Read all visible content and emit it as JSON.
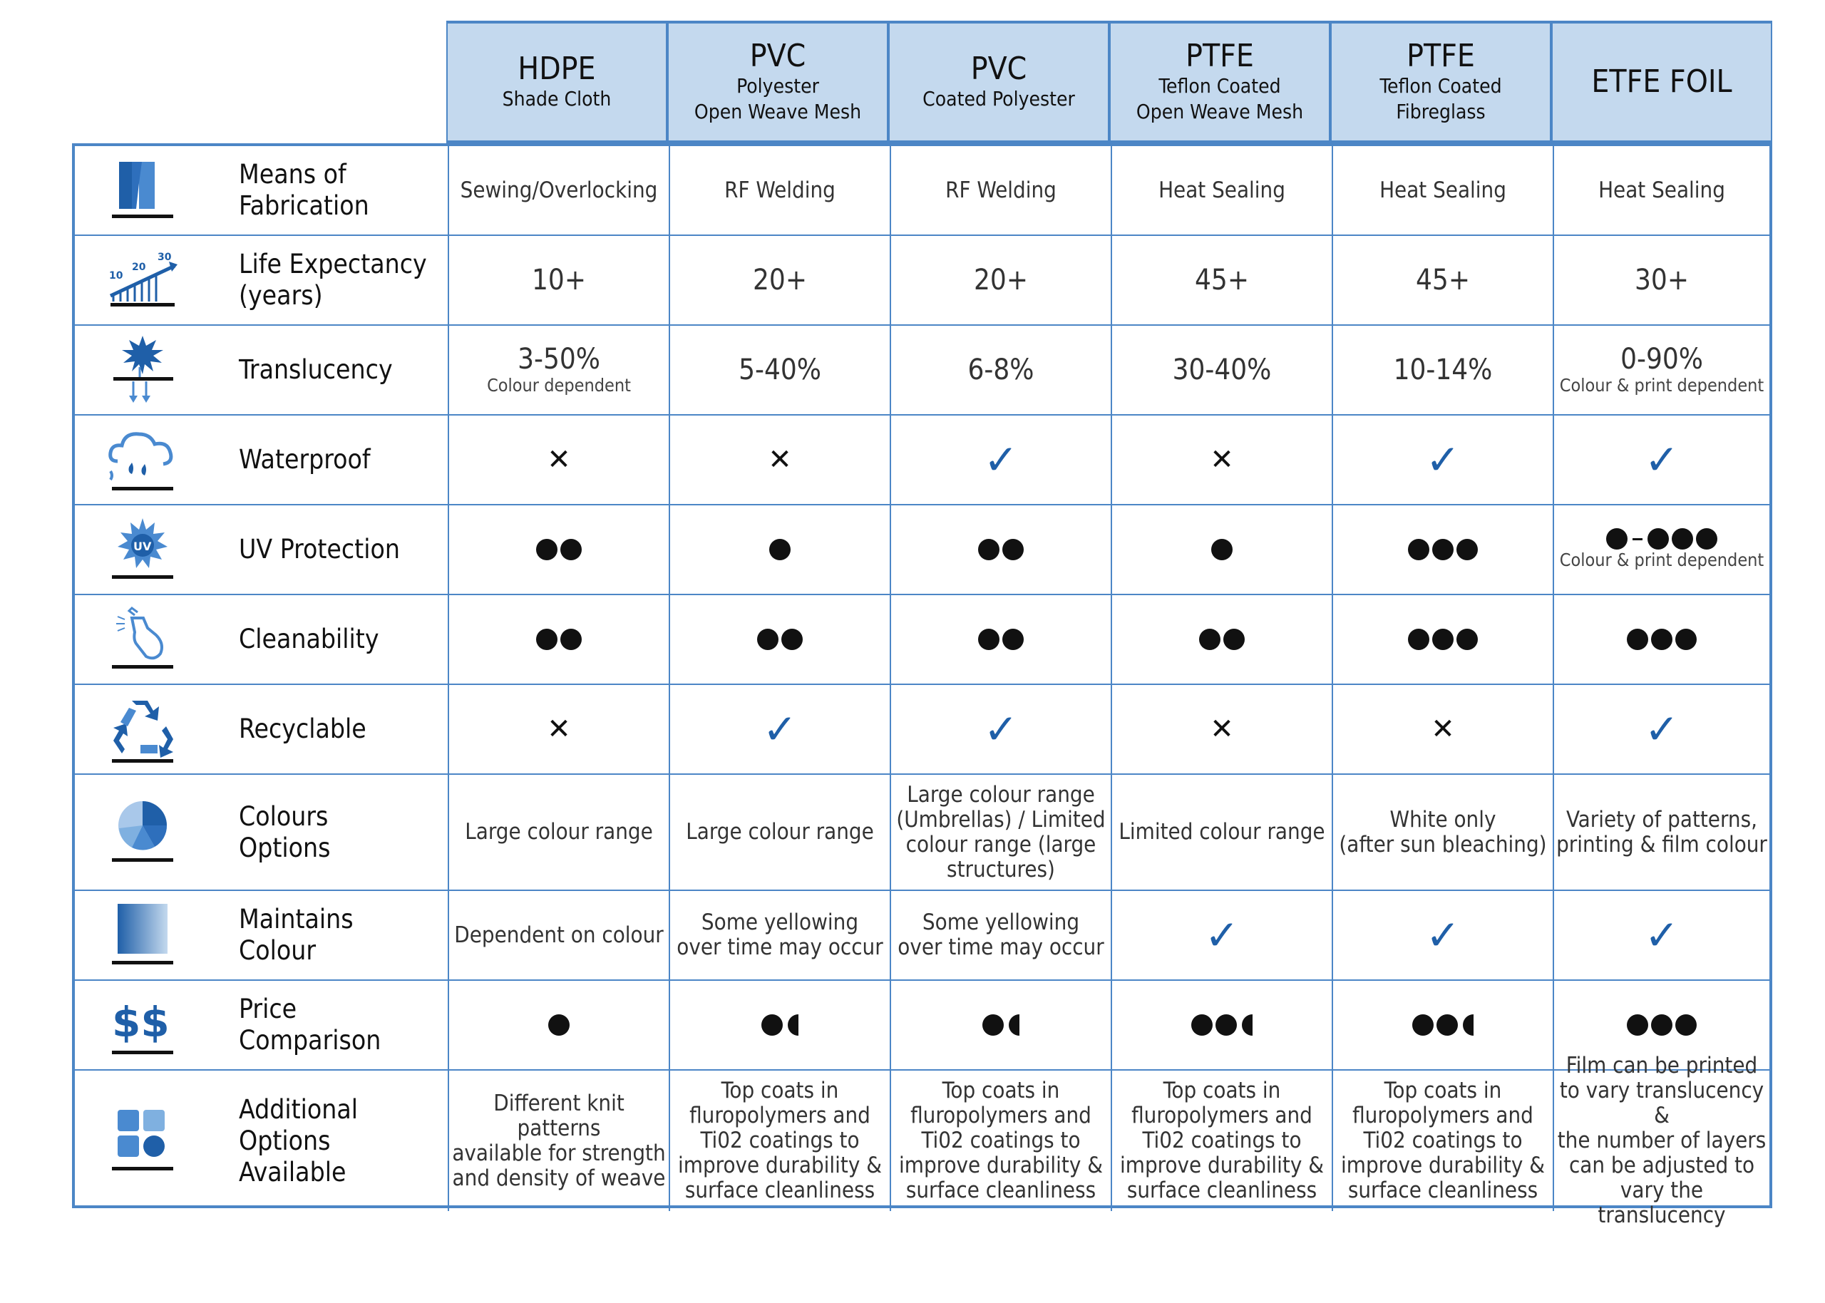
{
  "headers": [
    {
      "title": "HDPE",
      "subtitle": "Shade Cloth"
    },
    {
      "title": "PVC",
      "subtitle": "Polyester\nOpen Weave Mesh"
    },
    {
      "title": "PVC",
      "subtitle": "Coated Polyester"
    },
    {
      "title": "PTFE",
      "subtitle": "Teflon Coated\nOpen Weave Mesh"
    },
    {
      "title": "PTFE",
      "subtitle": "Teflon Coated\nFibreglass"
    },
    {
      "title": "ETFE FOIL",
      "subtitle": ""
    }
  ],
  "colors": {
    "header_bg": "#c4d9ee",
    "border": "#4c86c6",
    "icon_blue": "#1f5fa8",
    "check": "#1f5fa8"
  },
  "rows": [
    {
      "label": "Means of\nFabrication",
      "icon": "fabrication-icon",
      "cells": [
        {
          "type": "text",
          "text": "Sewing/Overlocking"
        },
        {
          "type": "text",
          "text": "RF Welding"
        },
        {
          "type": "text",
          "text": "RF Welding"
        },
        {
          "type": "text",
          "text": "Heat Sealing"
        },
        {
          "type": "text",
          "text": "Heat Sealing"
        },
        {
          "type": "text",
          "text": "Heat Sealing"
        }
      ]
    },
    {
      "label": "Life Expectancy\n(years)",
      "icon": "life-expectancy-icon",
      "cells": [
        {
          "type": "big",
          "text": "10+"
        },
        {
          "type": "big",
          "text": "20+"
        },
        {
          "type": "big",
          "text": "20+"
        },
        {
          "type": "big",
          "text": "45+"
        },
        {
          "type": "big",
          "text": "45+"
        },
        {
          "type": "big",
          "text": "30+"
        }
      ]
    },
    {
      "label": "Translucency",
      "icon": "translucency-icon",
      "cells": [
        {
          "type": "big",
          "text": "3-50%",
          "note": "Colour dependent"
        },
        {
          "type": "big",
          "text": "5-40%"
        },
        {
          "type": "big",
          "text": "6-8%"
        },
        {
          "type": "big",
          "text": "30-40%"
        },
        {
          "type": "big",
          "text": "10-14%"
        },
        {
          "type": "big",
          "text": "0-90%",
          "note": "Colour & print dependent"
        }
      ]
    },
    {
      "label": "Waterproof",
      "icon": "waterproof-icon",
      "cells": [
        {
          "type": "cross",
          "text": "✕"
        },
        {
          "type": "cross",
          "text": "✕"
        },
        {
          "type": "check",
          "text": "✓"
        },
        {
          "type": "cross",
          "text": "✕"
        },
        {
          "type": "check",
          "text": "✓"
        },
        {
          "type": "check",
          "text": "✓"
        }
      ]
    },
    {
      "label": "UV Protection",
      "icon": "uv-protection-icon",
      "cells": [
        {
          "type": "dots",
          "full": 2,
          "half": 0
        },
        {
          "type": "dots",
          "full": 1,
          "half": 0
        },
        {
          "type": "dots",
          "full": 2,
          "half": 0
        },
        {
          "type": "dots",
          "full": 1,
          "half": 0
        },
        {
          "type": "dots",
          "full": 3,
          "half": 0
        },
        {
          "type": "range",
          "from": 1,
          "to": 3,
          "note": "Colour & print dependent"
        }
      ]
    },
    {
      "label": "Cleanability",
      "icon": "cleanability-icon",
      "cells": [
        {
          "type": "dots",
          "full": 2,
          "half": 0
        },
        {
          "type": "dots",
          "full": 2,
          "half": 0
        },
        {
          "type": "dots",
          "full": 2,
          "half": 0
        },
        {
          "type": "dots",
          "full": 2,
          "half": 0
        },
        {
          "type": "dots",
          "full": 3,
          "half": 0
        },
        {
          "type": "dots",
          "full": 3,
          "half": 0
        }
      ]
    },
    {
      "label": "Recyclable",
      "icon": "recycle-icon",
      "cells": [
        {
          "type": "cross",
          "text": "✕"
        },
        {
          "type": "check",
          "text": "✓"
        },
        {
          "type": "check",
          "text": "✓"
        },
        {
          "type": "cross",
          "text": "✕"
        },
        {
          "type": "cross",
          "text": "✕"
        },
        {
          "type": "check",
          "text": "✓"
        }
      ]
    },
    {
      "label": "Colours\nOptions",
      "icon": "colours-options-icon",
      "cells": [
        {
          "type": "text",
          "text": "Large colour range"
        },
        {
          "type": "text",
          "text": "Large colour range"
        },
        {
          "type": "text",
          "text": "Large colour range\n(Umbrellas) / Limited\ncolour range (large\nstructures)"
        },
        {
          "type": "text",
          "text": "Limited colour range"
        },
        {
          "type": "text",
          "text": "White only\n(after sun bleaching)"
        },
        {
          "type": "text",
          "text": "Variety of patterns,\nprinting & film colour"
        }
      ]
    },
    {
      "label": "Maintains\nColour",
      "icon": "maintains-colour-icon",
      "cells": [
        {
          "type": "text",
          "text": "Dependent on colour"
        },
        {
          "type": "text",
          "text": "Some yellowing\nover time may occur"
        },
        {
          "type": "text",
          "text": "Some yellowing\nover time may occur"
        },
        {
          "type": "check",
          "text": "✓"
        },
        {
          "type": "check",
          "text": "✓"
        },
        {
          "type": "check",
          "text": "✓"
        }
      ]
    },
    {
      "label": "Price\nComparison",
      "icon": "price-icon",
      "icon_text": "$$",
      "cells": [
        {
          "type": "dots",
          "full": 1,
          "half": 0
        },
        {
          "type": "dots",
          "full": 1,
          "half": 1
        },
        {
          "type": "dots",
          "full": 1,
          "half": 1
        },
        {
          "type": "dots",
          "full": 2,
          "half": 1
        },
        {
          "type": "dots",
          "full": 2,
          "half": 1
        },
        {
          "type": "dots",
          "full": 3,
          "half": 0
        }
      ]
    },
    {
      "label": "Additional\nOptions\nAvailable",
      "icon": "additional-options-icon",
      "cells": [
        {
          "type": "text",
          "text": "Different knit patterns\navailable for strength\nand density of weave"
        },
        {
          "type": "text",
          "text": "Top coats in\nfluropolymers and\nTi02 coatings to\nimprove durability &\nsurface cleanliness"
        },
        {
          "type": "text",
          "text": "Top coats in\nfluropolymers and\nTi02  coatings to\nimprove durability &\nsurface cleanliness"
        },
        {
          "type": "text",
          "text": "Top coats in\nfluropolymers and\nTi02 coatings to\nimprove durability &\nsurface cleanliness"
        },
        {
          "type": "text",
          "text": "Top coats in\nfluropolymers and\nTi02 coatings to\nimprove durability &\nsurface cleanliness"
        },
        {
          "type": "text",
          "text": "Film can be printed\nto vary translucency &\nthe number of layers\ncan be adjusted to\nvary the translucency"
        }
      ]
    }
  ]
}
